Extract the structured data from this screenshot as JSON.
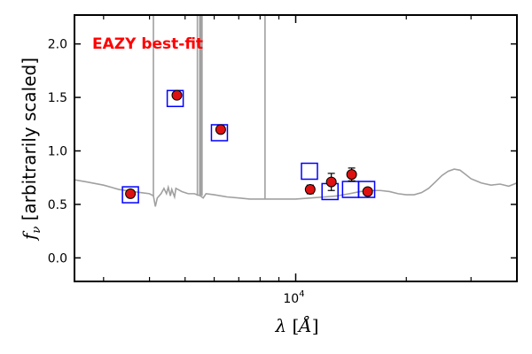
{
  "chart_data": {
    "type": "scatter",
    "xscale": "log",
    "xlabel": "λ [Å]",
    "ylabel": "f_ν [arbitrarily scaled]",
    "ylim": [
      -0.22,
      2.27
    ],
    "xlim": [
      2500,
      40000
    ],
    "yticks": [
      0.0,
      0.5,
      1.0,
      1.5,
      2.0
    ],
    "ytick_labels": [
      "0.0",
      "0.5",
      "1.0",
      "1.5",
      "2.0"
    ],
    "xtick_major": 10000,
    "xtick_major_label": "10",
    "xtick_major_exponent": "4",
    "annotation": {
      "text": "EAZY best-fit",
      "color": "#ff0000"
    },
    "colors": {
      "model": "#a0a0a0",
      "model_points": "#0000ff",
      "observed_fill": "#dd1111",
      "observed_edge": "#000000",
      "axes": "#000000"
    },
    "model_points": [
      {
        "x": 3550,
        "y": 0.59
      },
      {
        "x": 4700,
        "y": 1.49
      },
      {
        "x": 6200,
        "y": 1.17
      },
      {
        "x": 10900,
        "y": 0.81
      },
      {
        "x": 12400,
        "y": 0.62
      },
      {
        "x": 14100,
        "y": 0.64
      },
      {
        "x": 15600,
        "y": 0.64
      }
    ],
    "observed_points": [
      {
        "x": 3550,
        "y": 0.6,
        "err": 0.02
      },
      {
        "x": 4750,
        "y": 1.52,
        "err": 0.02
      },
      {
        "x": 6250,
        "y": 1.2,
        "err": 0.02
      },
      {
        "x": 10950,
        "y": 0.64,
        "err": 0.04
      },
      {
        "x": 12500,
        "y": 0.71,
        "err": 0.08
      },
      {
        "x": 14200,
        "y": 0.78,
        "err": 0.06
      },
      {
        "x": 15700,
        "y": 0.62,
        "err": 0.02
      }
    ],
    "model_spectrum": [
      [
        2500,
        0.73
      ],
      [
        2700,
        0.71
      ],
      [
        3000,
        0.68
      ],
      [
        3300,
        0.64
      ],
      [
        3600,
        0.62
      ],
      [
        3800,
        0.61
      ],
      [
        4000,
        0.6
      ],
      [
        4100,
        0.58
      ],
      [
        4150,
        0.48
      ],
      [
        4200,
        0.56
      ],
      [
        4300,
        0.6
      ],
      [
        4380,
        0.65
      ],
      [
        4450,
        0.6
      ],
      [
        4500,
        0.66
      ],
      [
        4560,
        0.58
      ],
      [
        4600,
        0.64
      ],
      [
        4680,
        0.57
      ],
      [
        4720,
        0.65
      ],
      [
        4900,
        0.62
      ],
      [
        5100,
        0.6
      ],
      [
        5300,
        0.6
      ],
      [
        5500,
        0.58
      ],
      [
        5600,
        0.56
      ],
      [
        5700,
        0.6
      ],
      [
        6000,
        0.59
      ],
      [
        6500,
        0.57
      ],
      [
        7000,
        0.56
      ],
      [
        7500,
        0.55
      ],
      [
        8000,
        0.55
      ],
      [
        8700,
        0.55
      ],
      [
        9000,
        0.55
      ],
      [
        10000,
        0.55
      ],
      [
        11000,
        0.56
      ],
      [
        12000,
        0.57
      ],
      [
        13000,
        0.58
      ],
      [
        14000,
        0.6
      ],
      [
        15000,
        0.62
      ],
      [
        16000,
        0.63
      ],
      [
        17000,
        0.63
      ],
      [
        18000,
        0.62
      ],
      [
        19000,
        0.6
      ],
      [
        20000,
        0.59
      ],
      [
        21000,
        0.59
      ],
      [
        22000,
        0.61
      ],
      [
        23000,
        0.65
      ],
      [
        24000,
        0.71
      ],
      [
        25000,
        0.77
      ],
      [
        26000,
        0.81
      ],
      [
        27000,
        0.83
      ],
      [
        28000,
        0.82
      ],
      [
        29000,
        0.78
      ],
      [
        30000,
        0.74
      ],
      [
        32000,
        0.7
      ],
      [
        34000,
        0.68
      ],
      [
        36000,
        0.69
      ],
      [
        38000,
        0.67
      ],
      [
        40000,
        0.7
      ]
    ],
    "emission_lines": [
      {
        "x": 4100,
        "base": 0.58
      },
      {
        "x": 5400,
        "base": 0.58
      },
      {
        "x": 5480,
        "base": 0.58
      },
      {
        "x": 5520,
        "base": 0.58
      },
      {
        "x": 5560,
        "base": 0.58
      },
      {
        "x": 8250,
        "base": 0.55
      }
    ]
  }
}
